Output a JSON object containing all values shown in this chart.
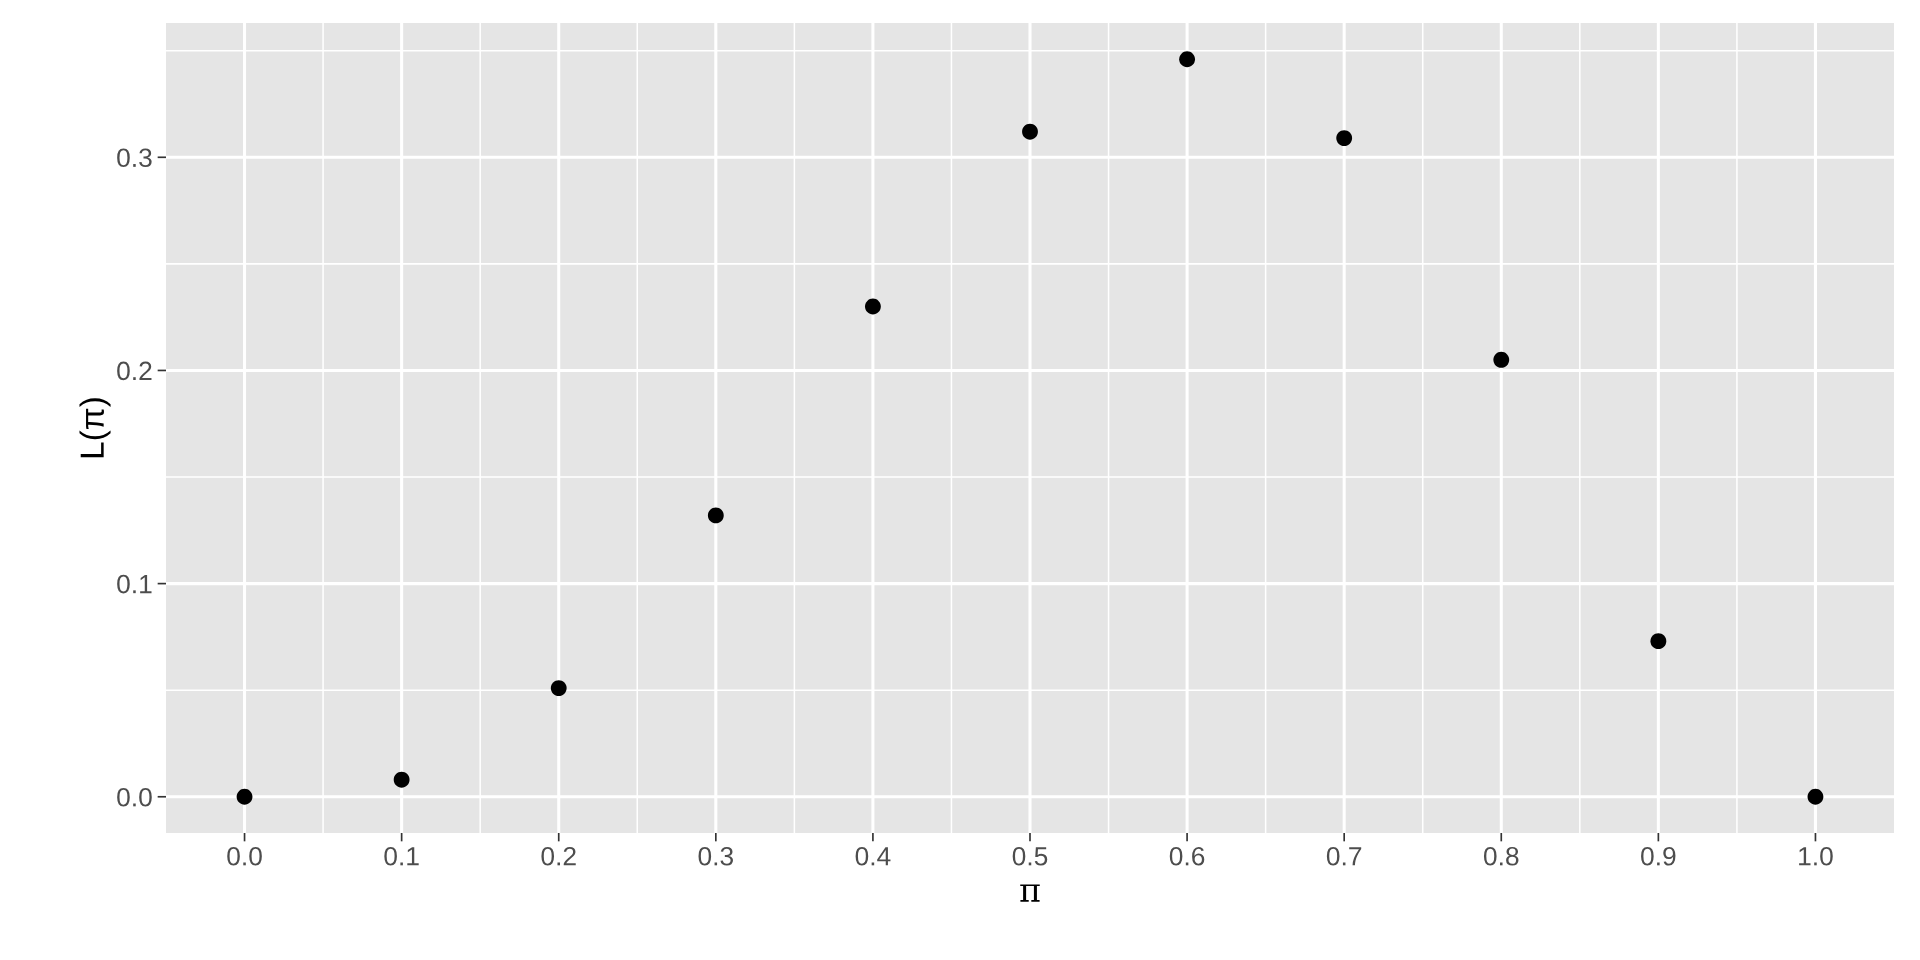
{
  "chart_data": {
    "type": "scatter",
    "xlabel": "π",
    "ylabel": "L(π)",
    "x": [
      0.0,
      0.1,
      0.2,
      0.3,
      0.4,
      0.5,
      0.6,
      0.7,
      0.8,
      0.9,
      1.0
    ],
    "series": [
      {
        "color": "#000000",
        "values": [
          0.0,
          0.008,
          0.051,
          0.132,
          0.23,
          0.312,
          0.346,
          0.309,
          0.205,
          0.073,
          0.0
        ]
      }
    ],
    "xlim": [
      -0.05,
      1.05
    ],
    "ylim": [
      -0.017,
      0.363
    ],
    "xticks": [
      {
        "value": 0.0,
        "label": "0.0"
      },
      0.1,
      0.2,
      0.3,
      0.4,
      0.5,
      0.6,
      0.7,
      0.8,
      0.9,
      {
        "value": 1.0,
        "label": "1.0"
      }
    ],
    "yticks": [
      {
        "value": 0.0,
        "label": "0.0"
      },
      0.1,
      0.2,
      0.3
    ],
    "grid": true,
    "marker": "circle"
  }
}
